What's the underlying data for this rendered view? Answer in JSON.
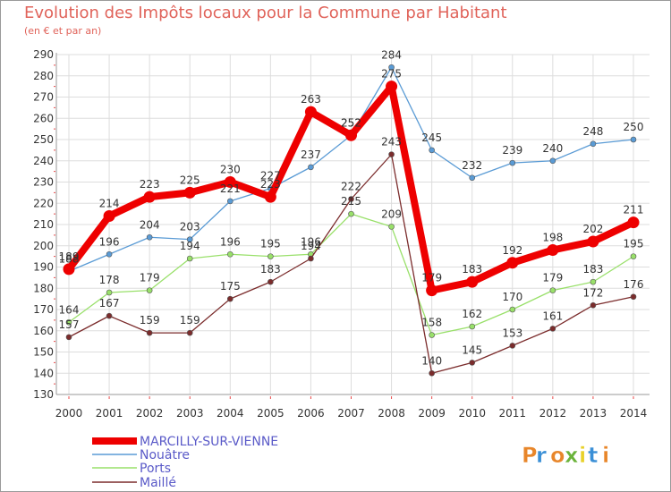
{
  "chart_data": {
    "type": "line",
    "title": "Evolution des Impôts locaux pour la Commune par Habitant",
    "subtitle": "(en € et par an)",
    "x": [
      "2000",
      "2001",
      "2002",
      "2003",
      "2004",
      "2005",
      "2006",
      "2007",
      "2008",
      "2009",
      "2010",
      "2011",
      "2012",
      "2013",
      "2014"
    ],
    "ylim": [
      130,
      290
    ],
    "yticks": [
      130,
      140,
      150,
      160,
      170,
      180,
      190,
      200,
      210,
      220,
      230,
      240,
      250,
      260,
      270,
      280,
      290
    ],
    "grid": true,
    "legend_position": "bottom-left",
    "series": [
      {
        "name": "MARCILLY-SUR-VIENNE",
        "color": "#ee0000",
        "values": [
          189,
          214,
          223,
          225,
          230,
          223,
          263,
          252,
          275,
          179,
          183,
          192,
          198,
          202,
          211
        ],
        "labels": [
          "189",
          "214",
          "223",
          "225",
          "230",
          "223",
          "263",
          "252",
          "275",
          "179",
          "183",
          "192",
          "198",
          "202",
          "211"
        ]
      },
      {
        "name": "Nouâtre",
        "color": "#5a9bd5",
        "values": [
          188,
          196,
          204,
          203,
          221,
          227,
          237,
          252,
          284,
          245,
          232,
          239,
          240,
          248,
          250
        ],
        "labels": [
          "188",
          "196",
          "204",
          "203",
          "221",
          "227",
          "237",
          "252",
          "284",
          "245",
          "232",
          "239",
          "240",
          "248",
          "250"
        ]
      },
      {
        "name": "Ports",
        "color": "#99e06a",
        "values": [
          164,
          178,
          179,
          194,
          196,
          195,
          196,
          215,
          209,
          158,
          162,
          170,
          179,
          183,
          195
        ],
        "labels": [
          "164",
          "178",
          "179",
          "194",
          "196",
          "195",
          "196",
          "215",
          "209",
          "158",
          "162",
          "170",
          "179",
          "183",
          "195"
        ]
      },
      {
        "name": "Maillé",
        "color": "#7b2c2c",
        "values": [
          157,
          167,
          159,
          159,
          175,
          183,
          194,
          222,
          243,
          140,
          145,
          153,
          161,
          172,
          176
        ],
        "labels": [
          "157",
          "167",
          "159",
          "159",
          "175",
          "183",
          "194",
          "222",
          "243",
          "140",
          "145",
          "153",
          "161",
          "172",
          "176"
        ]
      }
    ]
  },
  "logo": {
    "text": "Proxiti"
  }
}
